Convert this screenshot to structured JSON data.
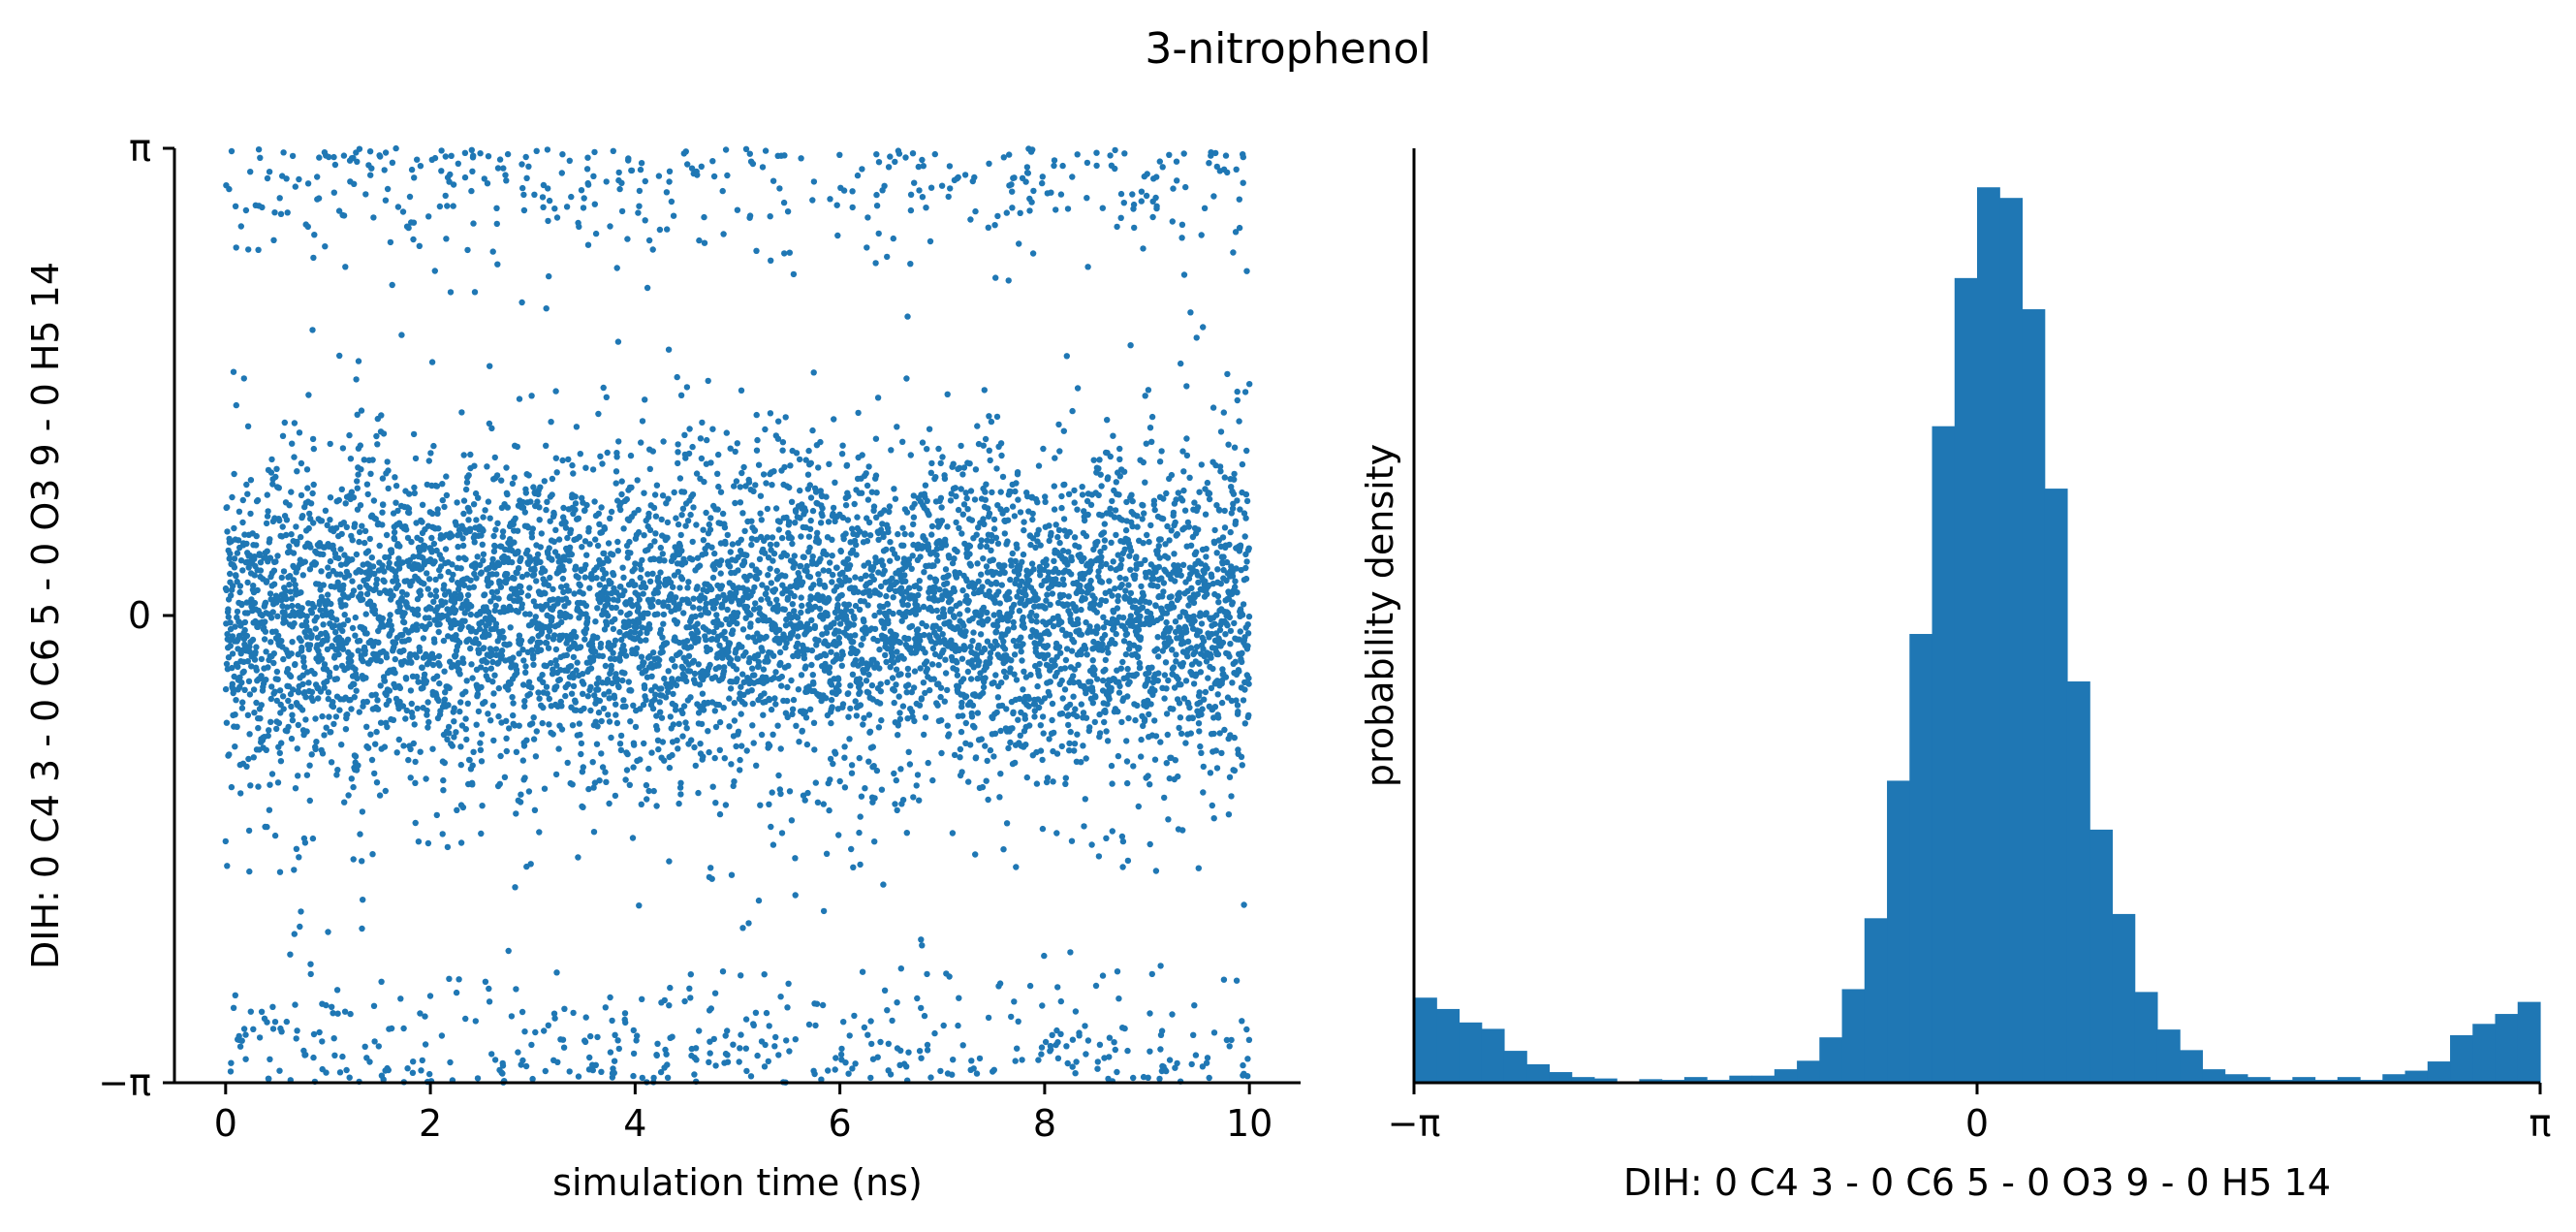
{
  "figure": {
    "title": "3-nitrophenol"
  },
  "colors": {
    "series": "#1f77b4",
    "axis": "#000000",
    "background": "#ffffff"
  },
  "chart_data": [
    {
      "type": "scatter",
      "xlabel": "simulation time (ns)",
      "ylabel": "DIH:  0 C4 3 -  0 C6 5 -  0 O3 9 -  0 H5 14",
      "xlim": [
        -0.5,
        10.5
      ],
      "ylim": [
        -3.14159,
        3.14159
      ],
      "xticks": [
        0,
        2,
        4,
        6,
        8,
        10
      ],
      "xtick_labels": [
        "0",
        "2",
        "4",
        "6",
        "8",
        "10"
      ],
      "yticks": [
        -3.14159,
        0,
        3.14159
      ],
      "ytick_labels": [
        "−π",
        "0",
        "π"
      ],
      "grid": false,
      "description_of_distribution": "10 ns trajectory, ~7000 frames; dense band centered at 0 (sd ~0.55 rad), secondary populations near +pi and -pi (wrapped), sparse transitions between",
      "points": []
    },
    {
      "type": "bar",
      "subtype": "histogram",
      "xlabel": "DIH:  0 C4 3 -  0 C6 5 -  0 O3 9 -  0 H5 14",
      "ylabel": "probability density",
      "xlim": [
        -3.14159,
        3.14159
      ],
      "xticks": [
        -3.14159,
        0,
        3.14159
      ],
      "xtick_labels": [
        "−π",
        "0",
        "π"
      ],
      "yticks": [],
      "grid": false,
      "bin_edges_range": [
        -3.14159,
        3.14159
      ],
      "bin_count": 50,
      "values": [
        0.12,
        0.104,
        0.085,
        0.076,
        0.045,
        0.026,
        0.015,
        0.008,
        0.006,
        0.002,
        0.005,
        0.004,
        0.008,
        0.004,
        0.01,
        0.01,
        0.019,
        0.031,
        0.064,
        0.132,
        0.232,
        0.426,
        0.633,
        0.926,
        1.135,
        1.263,
        1.248,
        1.091,
        0.838,
        0.566,
        0.357,
        0.238,
        0.128,
        0.075,
        0.046,
        0.019,
        0.012,
        0.008,
        0.004,
        0.008,
        0.004,
        0.008,
        0.004,
        0.012,
        0.017,
        0.03,
        0.067,
        0.083,
        0.097,
        0.114
      ],
      "ylim": [
        0,
        1.318
      ]
    }
  ]
}
